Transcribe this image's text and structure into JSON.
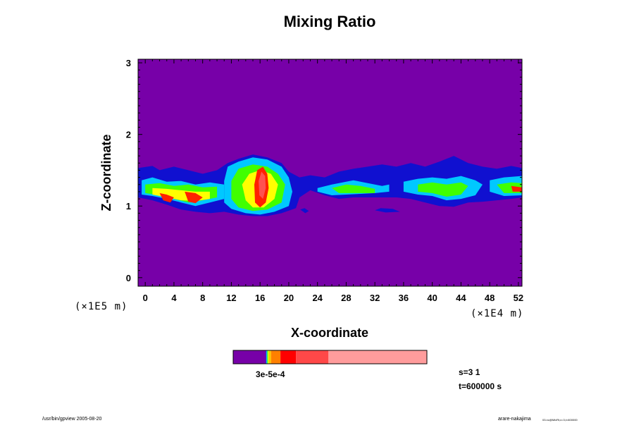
{
  "chart_data": {
    "type": "heatmap",
    "title": "Mixing Ratio",
    "xlabel": "X-coordinate",
    "ylabel": "Z-coordinate",
    "x_multiplier": "(×1E4 m)",
    "y_multiplier": "(×1E5 m)",
    "xlim": [
      -1,
      52.5
    ],
    "ylim": [
      -0.12,
      3.05
    ],
    "x_ticks": [
      0,
      4,
      8,
      12,
      16,
      20,
      24,
      28,
      32,
      36,
      40,
      44,
      48,
      52
    ],
    "y_ticks": [
      0,
      1,
      2,
      3
    ],
    "background_color": "#7700a8",
    "levels": [
      {
        "color": "#1010d0"
      },
      {
        "color": "#2060ff"
      },
      {
        "color": "#00c8ff"
      },
      {
        "color": "#00e070"
      },
      {
        "color": "#40ff00"
      },
      {
        "color": "#c8ff00"
      },
      {
        "color": "#ffff00"
      },
      {
        "color": "#ffa500"
      },
      {
        "color": "#ff2000"
      },
      {
        "color": "#ff5050"
      }
    ],
    "fields": [
      {
        "name": "layer",
        "level": 0,
        "points": [
          [
            -1,
            1.53
          ],
          [
            1,
            1.56
          ],
          [
            2,
            1.5
          ],
          [
            4,
            1.55
          ],
          [
            6,
            1.5
          ],
          [
            8,
            1.45
          ],
          [
            10,
            1.5
          ],
          [
            11.5,
            1.6
          ],
          [
            13,
            1.66
          ],
          [
            15,
            1.72
          ],
          [
            17,
            1.68
          ],
          [
            19,
            1.6
          ],
          [
            20,
            1.48
          ],
          [
            21.5,
            1.4
          ],
          [
            23,
            1.43
          ],
          [
            25,
            1.4
          ],
          [
            27,
            1.48
          ],
          [
            29,
            1.52
          ],
          [
            31,
            1.55
          ],
          [
            33,
            1.58
          ],
          [
            35,
            1.55
          ],
          [
            37,
            1.6
          ],
          [
            39,
            1.55
          ],
          [
            41,
            1.62
          ],
          [
            43,
            1.7
          ],
          [
            45,
            1.6
          ],
          [
            47,
            1.55
          ],
          [
            49,
            1.52
          ],
          [
            51,
            1.56
          ],
          [
            52.5,
            1.53
          ],
          [
            52.5,
            1.12
          ],
          [
            51,
            1.1
          ],
          [
            49,
            1.08
          ],
          [
            47,
            1.06
          ],
          [
            45,
            1.05
          ],
          [
            43,
            0.99
          ],
          [
            41,
            1.0
          ],
          [
            39,
            1.05
          ],
          [
            37,
            1.1
          ],
          [
            35,
            1.12
          ],
          [
            33,
            1.12
          ],
          [
            31,
            1.12
          ],
          [
            29,
            1.12
          ],
          [
            27,
            1.1
          ],
          [
            25,
            1.15
          ],
          [
            23,
            1.22
          ],
          [
            21.5,
            1.12
          ],
          [
            21,
            0.97
          ],
          [
            19,
            0.9
          ],
          [
            17,
            0.86
          ],
          [
            15,
            0.86
          ],
          [
            13,
            0.88
          ],
          [
            11,
            0.92
          ],
          [
            9,
            0.9
          ],
          [
            7,
            0.92
          ],
          [
            5,
            0.95
          ],
          [
            3,
            1.02
          ],
          [
            1,
            1.08
          ],
          [
            -1,
            1.12
          ]
        ]
      },
      {
        "name": "puff-a",
        "level": 0,
        "points": [
          [
            21.6,
            0.95
          ],
          [
            22.3,
            0.9
          ],
          [
            22.8,
            0.93
          ],
          [
            22.2,
            0.97
          ]
        ]
      },
      {
        "name": "puff-b",
        "level": 0,
        "points": [
          [
            32,
            0.94
          ],
          [
            33.5,
            0.91
          ],
          [
            35.5,
            0.92
          ],
          [
            34.5,
            0.96
          ],
          [
            32.8,
            0.97
          ]
        ]
      },
      {
        "name": "west",
        "level": 2,
        "points": [
          [
            -0.5,
            1.36
          ],
          [
            1,
            1.4
          ],
          [
            3,
            1.34
          ],
          [
            5,
            1.35
          ],
          [
            7,
            1.3
          ],
          [
            9,
            1.33
          ],
          [
            11,
            1.3
          ],
          [
            11,
            1.1
          ],
          [
            9,
            1.05
          ],
          [
            7,
            1.0
          ],
          [
            5,
            1.05
          ],
          [
            3,
            1.1
          ],
          [
            1,
            1.14
          ],
          [
            -0.5,
            1.16
          ]
        ]
      },
      {
        "name": "blob",
        "level": 2,
        "points": [
          [
            11,
            1.35
          ],
          [
            11.5,
            1.55
          ],
          [
            13,
            1.62
          ],
          [
            15,
            1.68
          ],
          [
            17,
            1.65
          ],
          [
            19,
            1.55
          ],
          [
            20,
            1.4
          ],
          [
            20.5,
            1.2
          ],
          [
            20,
            1.0
          ],
          [
            18,
            0.92
          ],
          [
            16,
            0.88
          ],
          [
            14,
            0.9
          ],
          [
            12,
            0.96
          ],
          [
            11,
            1.05
          ]
        ]
      },
      {
        "name": "east-1",
        "level": 2,
        "points": [
          [
            24,
            1.25
          ],
          [
            26,
            1.3
          ],
          [
            29,
            1.36
          ],
          [
            31,
            1.32
          ],
          [
            33,
            1.28
          ],
          [
            34,
            1.3
          ],
          [
            34,
            1.2
          ],
          [
            32,
            1.18
          ],
          [
            30,
            1.17
          ],
          [
            28,
            1.16
          ],
          [
            26,
            1.15
          ],
          [
            24,
            1.2
          ]
        ]
      },
      {
        "name": "east-2",
        "level": 2,
        "points": [
          [
            36,
            1.34
          ],
          [
            38,
            1.38
          ],
          [
            40,
            1.4
          ],
          [
            42,
            1.38
          ],
          [
            44,
            1.42
          ],
          [
            46,
            1.36
          ],
          [
            47,
            1.3
          ],
          [
            46,
            1.15
          ],
          [
            44,
            1.1
          ],
          [
            42,
            1.08
          ],
          [
            40,
            1.14
          ],
          [
            38,
            1.16
          ],
          [
            36,
            1.2
          ]
        ]
      },
      {
        "name": "east-3",
        "level": 2,
        "points": [
          [
            48,
            1.36
          ],
          [
            50,
            1.4
          ],
          [
            52.5,
            1.42
          ],
          [
            52.5,
            1.15
          ],
          [
            50,
            1.14
          ],
          [
            48,
            1.2
          ]
        ]
      },
      {
        "name": "west-g",
        "level": 4,
        "points": [
          [
            0,
            1.3
          ],
          [
            2,
            1.32
          ],
          [
            4,
            1.28
          ],
          [
            6,
            1.3
          ],
          [
            8,
            1.26
          ],
          [
            10,
            1.27
          ],
          [
            10,
            1.12
          ],
          [
            8,
            1.08
          ],
          [
            6,
            1.05
          ],
          [
            4,
            1.1
          ],
          [
            2,
            1.15
          ],
          [
            0,
            1.18
          ]
        ]
      },
      {
        "name": "blob-g",
        "level": 4,
        "points": [
          [
            12,
            1.35
          ],
          [
            13,
            1.52
          ],
          [
            15,
            1.58
          ],
          [
            17,
            1.55
          ],
          [
            18.5,
            1.45
          ],
          [
            19.5,
            1.3
          ],
          [
            19,
            1.05
          ],
          [
            17,
            0.95
          ],
          [
            15,
            0.93
          ],
          [
            13,
            0.98
          ],
          [
            12,
            1.1
          ]
        ]
      },
      {
        "name": "east-1g",
        "level": 4,
        "points": [
          [
            26,
            1.25
          ],
          [
            28,
            1.3
          ],
          [
            30,
            1.28
          ],
          [
            32,
            1.24
          ],
          [
            32,
            1.18
          ],
          [
            29,
            1.18
          ],
          [
            27,
            1.18
          ]
        ]
      },
      {
        "name": "east-2g",
        "level": 4,
        "points": [
          [
            38,
            1.3
          ],
          [
            40,
            1.33
          ],
          [
            42,
            1.3
          ],
          [
            44,
            1.33
          ],
          [
            45,
            1.28
          ],
          [
            44,
            1.16
          ],
          [
            42,
            1.13
          ],
          [
            40,
            1.18
          ],
          [
            38,
            1.2
          ]
        ]
      },
      {
        "name": "east-3g",
        "level": 4,
        "points": [
          [
            49,
            1.3
          ],
          [
            51,
            1.33
          ],
          [
            52.5,
            1.32
          ],
          [
            52.5,
            1.18
          ],
          [
            50,
            1.18
          ]
        ]
      },
      {
        "name": "west-y",
        "level": 6,
        "points": [
          [
            1,
            1.25
          ],
          [
            3,
            1.24
          ],
          [
            5,
            1.22
          ],
          [
            7,
            1.2
          ],
          [
            9,
            1.2
          ],
          [
            9,
            1.1
          ],
          [
            7,
            1.07
          ],
          [
            5,
            1.08
          ],
          [
            3,
            1.12
          ],
          [
            1,
            1.16
          ]
        ]
      },
      {
        "name": "blob-y",
        "level": 6,
        "points": [
          [
            13.5,
            1.3
          ],
          [
            14.5,
            1.45
          ],
          [
            16,
            1.5
          ],
          [
            17.5,
            1.45
          ],
          [
            18.5,
            1.3
          ],
          [
            18,
            1.1
          ],
          [
            16.5,
            0.98
          ],
          [
            15,
            0.98
          ],
          [
            14,
            1.08
          ]
        ]
      },
      {
        "name": "west-r",
        "level": 8,
        "points": [
          [
            2,
            1.18
          ],
          [
            3,
            1.16
          ],
          [
            4,
            1.12
          ],
          [
            3.5,
            1.05
          ],
          [
            2.5,
            1.08
          ]
        ]
      },
      {
        "name": "west-r2",
        "level": 8,
        "points": [
          [
            5.5,
            1.2
          ],
          [
            7,
            1.18
          ],
          [
            8,
            1.12
          ],
          [
            7,
            1.04
          ],
          [
            6,
            1.06
          ]
        ]
      },
      {
        "name": "blob-r",
        "level": 8,
        "points": [
          [
            15.2,
            1.3
          ],
          [
            15.6,
            1.5
          ],
          [
            16.4,
            1.55
          ],
          [
            17,
            1.45
          ],
          [
            17.2,
            1.25
          ],
          [
            16.8,
            1.05
          ],
          [
            16,
            0.98
          ],
          [
            15.3,
            1.05
          ]
        ]
      },
      {
        "name": "east-r",
        "level": 8,
        "points": [
          [
            51,
            1.28
          ],
          [
            52.5,
            1.26
          ],
          [
            52.5,
            1.2
          ],
          [
            51.2,
            1.2
          ]
        ]
      },
      {
        "name": "blob-p",
        "level": 9,
        "points": [
          [
            15.8,
            1.35
          ],
          [
            16.2,
            1.48
          ],
          [
            16.7,
            1.42
          ],
          [
            16.8,
            1.25
          ],
          [
            16.4,
            1.1
          ],
          [
            15.9,
            1.15
          ]
        ]
      }
    ],
    "colorbar": {
      "label": "3e-5e-4",
      "segments": [
        {
          "color": "#7700a8",
          "fraction": 0.168
        },
        {
          "color": "#1010d0",
          "fraction": 0.004
        },
        {
          "color": "#00c8ff",
          "fraction": 0.004
        },
        {
          "color": "#40ff00",
          "fraction": 0.004
        },
        {
          "color": "#ffff00",
          "fraction": 0.004
        },
        {
          "color": "#ffc000",
          "fraction": 0.012
        },
        {
          "color": "#ff8000",
          "fraction": 0.048
        },
        {
          "color": "#ff0000",
          "fraction": 0.08
        },
        {
          "color": "#ff4848",
          "fraction": 0.168
        },
        {
          "color": "#ff9c9c",
          "fraction": 0.508
        }
      ]
    }
  },
  "info": {
    "s_label": "s=3 1",
    "t_label": "t=600000 s"
  },
  "footer": {
    "left": "/usr/bin/gpview 2005-08-20",
    "right_main": "arare-nakajima",
    "right_sub": "03.nc@MixRt,x=3,t=600000"
  }
}
